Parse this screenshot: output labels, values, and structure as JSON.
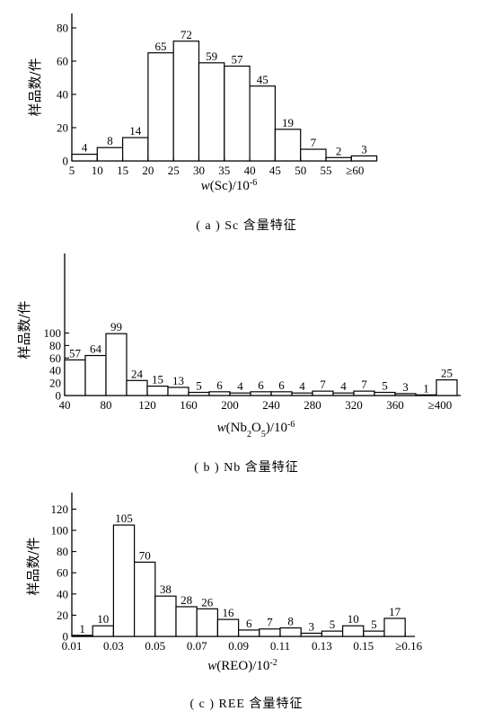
{
  "chart_data": [
    {
      "type": "bar",
      "caption": "( a )  Sc 含量特征",
      "ylabel": "样品数/件",
      "xlabel": "w(Sc)/10",
      "xlabel_sup": "-6",
      "ylim": [
        0,
        80
      ],
      "yticks": [
        0,
        20,
        40,
        60,
        80
      ],
      "categories": [
        "5-10",
        "10-15",
        "15-20",
        "20-25",
        "25-30",
        "30-35",
        "35-40",
        "40-45",
        "45-50",
        "50-55",
        "55-60",
        "≥60"
      ],
      "values": [
        4,
        8,
        14,
        65,
        72,
        59,
        57,
        45,
        19,
        7,
        2,
        3
      ],
      "xtick_labels": [
        "5",
        "10",
        "15",
        "20",
        "25",
        "30",
        "35",
        "40",
        "45",
        "50",
        "55",
        "≥60"
      ]
    },
    {
      "type": "bar",
      "caption": "( b )  Nb 含量特征",
      "ylabel": "样品数/件",
      "xlabel": "w(Nb",
      "xlabel_sup": "-6",
      "ylim": [
        0,
        120
      ],
      "yticks": [
        0,
        20,
        40,
        60,
        80,
        100
      ],
      "categories": [
        "40-60",
        "60-80",
        "80-100",
        "100-120",
        "120-140",
        "140-160",
        "160-180",
        "180-200",
        "200-220",
        "220-240",
        "240-260",
        "260-280",
        "280-300",
        "300-320",
        "320-340",
        "340-360",
        "360-380",
        "380-400",
        "≥400"
      ],
      "values": [
        57,
        64,
        99,
        24,
        15,
        13,
        5,
        6,
        4,
        6,
        6,
        4,
        7,
        4,
        7,
        5,
        3,
        1,
        25
      ],
      "xtick_labels": [
        "40",
        "80",
        "120",
        "160",
        "200",
        "240",
        "280",
        "320",
        "360",
        "≥400"
      ]
    },
    {
      "type": "bar",
      "caption": "( c )  REE 含量特征",
      "ylabel": "样品数/件",
      "xlabel": "w(REO)/10",
      "xlabel_sup": "-2",
      "ylim": [
        0,
        120
      ],
      "yticks": [
        0,
        20,
        40,
        60,
        80,
        100,
        120
      ],
      "categories": [
        "0.01-0.02",
        "0.02-0.03",
        "0.03-0.04",
        "0.04-0.05",
        "0.05-0.06",
        "0.06-0.07",
        "0.07-0.08",
        "0.08-0.09",
        "0.09-0.10",
        "0.10-0.11",
        "0.11-0.12",
        "0.12-0.13",
        "0.13-0.14",
        "0.14-0.15",
        "0.15-0.16",
        "≥0.16"
      ],
      "values": [
        1,
        10,
        105,
        70,
        38,
        28,
        26,
        16,
        6,
        7,
        8,
        3,
        5,
        10,
        5,
        17
      ],
      "xtick_labels": [
        "0.01",
        "0.03",
        "0.05",
        "0.07",
        "0.09",
        "0.11",
        "0.13",
        "0.15",
        "≥0.16"
      ]
    }
  ]
}
